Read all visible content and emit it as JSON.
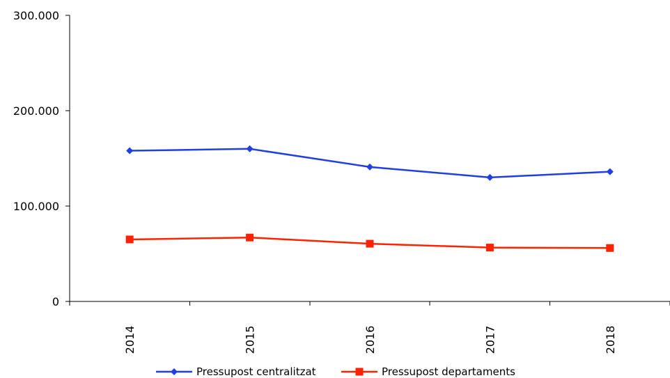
{
  "chart_data": {
    "type": "line",
    "title": "",
    "xlabel": "",
    "ylabel": "",
    "categories": [
      "2014",
      "2015",
      "2016",
      "2017",
      "2018"
    ],
    "y_ticks": [
      "0",
      "100.000",
      "200.000",
      "300.000"
    ],
    "ylim": [
      0,
      300000
    ],
    "grid": false,
    "legend_position": "bottom",
    "series": [
      {
        "name": "Pressupost centralitzat",
        "color": "#1f3fe0",
        "marker": "diamond",
        "values": [
          158000,
          160000,
          141000,
          130000,
          136000
        ]
      },
      {
        "name": "Pressupost departaments",
        "color": "#ff2200",
        "marker": "square",
        "values": [
          65000,
          67000,
          60500,
          56500,
          56000
        ]
      }
    ]
  }
}
